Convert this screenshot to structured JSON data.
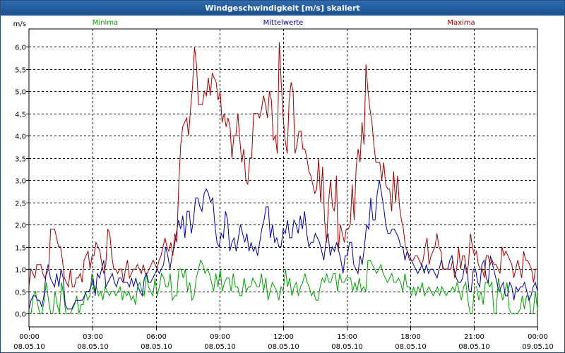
{
  "window": {
    "title": "Windgeschwindigkeit [m/s] skaliert"
  },
  "chart_data": {
    "type": "line",
    "title": "Windgeschwindigkeit [m/s] skaliert",
    "ylabel": "m/s",
    "ylim": [
      -0.3,
      6.4
    ],
    "yticks": [
      "0,0",
      "0,5",
      "1,0",
      "1,5",
      "2,0",
      "2,5",
      "3,0",
      "3,5",
      "4,0",
      "4,5",
      "5,0",
      "5,5",
      "6,0"
    ],
    "ytick_values": [
      0,
      0.5,
      1,
      1.5,
      2,
      2.5,
      3,
      3.5,
      4,
      4.5,
      5,
      5.5,
      6
    ],
    "xlim": [
      0,
      24
    ],
    "xticks": [
      {
        "time": "00:00",
        "date": "08.05.10"
      },
      {
        "time": "03:00",
        "date": "08.05.10"
      },
      {
        "time": "06:00",
        "date": "08.05.10"
      },
      {
        "time": "09:00",
        "date": "08.05.10"
      },
      {
        "time": "12:00",
        "date": "08.05.10"
      },
      {
        "time": "15:00",
        "date": "08.05.10"
      },
      {
        "time": "18:00",
        "date": "08.05.10"
      },
      {
        "time": "21:00",
        "date": "08.05.10"
      },
      {
        "time": "00:00",
        "date": "09.05.10"
      }
    ],
    "grid": true,
    "legend_position": "top",
    "series": [
      {
        "name": "Minima",
        "color": "#00a000",
        "values": [
          0,
          0,
          0.4,
          0.5,
          0.2,
          0,
          0,
          0.3,
          0.7,
          0.3,
          0,
          0,
          0.5,
          0.2,
          0,
          0.7,
          0.4,
          0,
          0,
          0,
          0.1,
          0.2,
          0.4,
          0,
          0.2,
          0.2,
          0.5,
          0.3,
          0.4,
          0.9,
          0.5,
          0.6,
          0.4,
          0.5,
          0.3,
          0.6,
          0.5,
          0.4,
          0.5,
          0.5,
          0.4,
          0.5,
          0.6,
          0.3,
          0.5,
          0.4,
          0.5,
          0.3,
          0.4,
          0.2,
          0.6,
          0.7,
          0.5,
          0.4,
          0.9,
          0.6,
          0.5,
          0.4,
          0.8,
          0.4,
          0.6,
          0.9,
          0.8,
          0.6,
          0.6,
          0.9,
          0.3,
          0.4,
          0.4,
          1,
          1,
          0.8,
          1,
          0.5,
          0.7,
          0.3,
          0.4,
          0.8,
          1,
          1.2,
          1.1,
          0.9,
          1,
          0.9,
          0.7,
          0.5,
          0.9,
          0.6,
          1,
          0.5,
          0.7,
          0.8,
          0.8,
          0.5,
          0.9,
          0.6,
          0.6,
          0.4,
          0.4,
          0.8,
          0.5,
          0.6,
          0.6,
          0.8,
          0.7,
          0.6,
          0.6,
          0.9,
          0.5,
          0.8,
          0.3,
          0.5,
          0.7,
          0.6,
          0.5,
          0.3,
          0.6,
          0.5,
          1,
          0.6,
          0.8,
          0.4,
          0.6,
          0.7,
          0.4,
          0.6,
          0.7,
          0.9,
          0.7,
          0.6,
          0.4,
          0.5,
          0.3,
          0.3,
          0.6,
          0.8,
          0.7,
          0.9,
          0.7,
          0.7,
          0.9,
          0.9,
          0.5,
          0.9,
          0.7,
          0.7,
          0.8,
          0.8,
          0.8,
          0.5,
          0.7,
          0.5,
          0.8,
          0.5,
          0.6,
          0.5,
          1.2,
          1.2,
          1.1,
          1,
          0.9,
          1,
          1.1,
          0.9,
          0.8,
          0.7,
          0.8,
          0.9,
          0.7,
          0.7,
          0.8,
          0.7,
          0.5,
          0.9,
          0.6,
          0.6,
          0.4,
          0.6,
          0.4,
          0.6,
          0.5,
          0.7,
          0.4,
          0.5,
          0.6,
          0.5,
          0.4,
          0.5,
          0.6,
          0.4,
          0.6,
          0.5,
          0.4,
          0.5,
          0.5,
          0.6,
          0.5,
          0.7,
          0.5,
          0.3,
          0.6,
          0.7,
          0.3,
          0,
          0,
          0.6,
          0.6,
          0.3,
          0.5,
          0.2,
          0.7,
          0.7,
          0.6,
          0.7,
          0,
          0,
          0.8,
          0.5,
          0.3,
          0.5,
          0.7,
          0.1,
          0,
          0,
          0,
          0,
          0.1,
          0.4,
          0.1,
          0.4,
          0.4,
          0,
          0,
          0.5,
          0.1
        ]
      },
      {
        "name": "Mittelwerte",
        "color": "#0000a0",
        "values": [
          0.1,
          0.3,
          0.4,
          0.4,
          0.3,
          0.3,
          0.15,
          0.4,
          0.9,
          1.1,
          0.8,
          0.7,
          0.6,
          0.9,
          0.6,
          1,
          0.8,
          0.2,
          0.1,
          0.1,
          0.1,
          0.2,
          0.3,
          0.3,
          0.3,
          0.3,
          0.4,
          0.5,
          0.5,
          0.6,
          0.8,
          0.4,
          0.9,
          0.8,
          1,
          1.2,
          0.6,
          0.7,
          0.8,
          0.9,
          0.7,
          0.6,
          0.8,
          0.8,
          0.7,
          0.7,
          0.7,
          0.6,
          0.8,
          0.6,
          0.8,
          0.6,
          0.5,
          0.4,
          0.8,
          0.9,
          0.7,
          0.7,
          0.8,
          0.9,
          1,
          0.9,
          1,
          1.1,
          1.5,
          1.3,
          1,
          1.3,
          1.5,
          1.8,
          2.1,
          1.9,
          2.2,
          1.7,
          2.3,
          2.3,
          1.8,
          2.1,
          2.6,
          2.6,
          2.4,
          2.3,
          2.7,
          2.8,
          2.7,
          2.5,
          2.6,
          2,
          1.6,
          1.5,
          1.8,
          1.7,
          2.3,
          2.1,
          1.4,
          1.6,
          1.7,
          1.4,
          1.7,
          2,
          1.8,
          1.6,
          1.8,
          1.4,
          1.6,
          1.4,
          1.5,
          1.3,
          1.6,
          1.9,
          2.1,
          2.4,
          2.4,
          1.7,
          2,
          1.6,
          1.7,
          1.5,
          1.5,
          1.9,
          1.8,
          2.1,
          1.7,
          1.7,
          2.1,
          2,
          1.8,
          2.2,
          1.9,
          2.3,
          1.8,
          1.5,
          1.6,
          1.6,
          1.8,
          1.7,
          1.6,
          1.4,
          1.2,
          1.6,
          1.8,
          1.3,
          1.5,
          1.4,
          1.6,
          1.4,
          1.2,
          0.9,
          1.3,
          1.3,
          1.6,
          1.6,
          1.1,
          1,
          0.9,
          1.3,
          1.1,
          1.5,
          2,
          1.9,
          2.6,
          2.1,
          2.1,
          2.7,
          3,
          2.7,
          2.4,
          2,
          1.8,
          1.8,
          1.9,
          1.9,
          1.8,
          1.7,
          1.5,
          1.5,
          1.2,
          1.4,
          1.3,
          1.2,
          1.1,
          1,
          0.9,
          1,
          1.1,
          0.9,
          1.1,
          0.9,
          1,
          1,
          0.9,
          0.8,
          1,
          1.2,
          1,
          1,
          1,
          1.2,
          1.3,
          1,
          0.8,
          0.7,
          0.7,
          0.8,
          1.1,
          1,
          0.5,
          0.5,
          1,
          1,
          0.7,
          0.6,
          1.1,
          1.2,
          0.8,
          0.7,
          1.3,
          1.1,
          0.9,
          0.7,
          0.5,
          0.6,
          0.7,
          0.4,
          0.4,
          0.7,
          0.6,
          0.3,
          0.6,
          0.5,
          0.6,
          0.6,
          0.7,
          0.5,
          0.3,
          0.4,
          0.6,
          0.7,
          0.5
        ]
      },
      {
        "name": "Maxima",
        "color": "#a00000",
        "values": [
          0.6,
          1,
          0.9,
          0.8,
          1.1,
          1.1,
          1.1,
          0.9,
          0.8,
          0.9,
          1,
          1.9,
          1.9,
          1.9,
          1.7,
          1.5,
          1.5,
          1.2,
          0.8,
          0.7,
          0.6,
          1,
          0.6,
          0.6,
          0.8,
          0.8,
          0.9,
          0.7,
          1.2,
          1.3,
          1.4,
          1,
          1.3,
          1.3,
          1.6,
          1.5,
          1.4,
          1.1,
          0.9,
          1.1,
          1.9,
          1.8,
          1.3,
          1,
          1,
          0.9,
          1,
          1,
          0.7,
          1,
          1.2,
          0.8,
          0.9,
          1,
          1,
          1.1,
          1,
          0.9,
          1.1,
          0.9,
          0.9,
          1,
          1.1,
          1.2,
          1.1,
          1,
          1.2,
          1.3,
          1.5,
          1.7,
          1.5,
          1.4,
          1.6,
          1.3,
          1.8,
          1.6,
          2.9,
          3.8,
          4.2,
          4.3,
          4.4,
          4,
          4.6,
          5.1,
          6,
          5.6,
          4.7,
          4.7,
          4.7,
          5,
          4.9,
          5.3,
          4.9,
          5.4,
          5.3,
          5.2,
          4.8,
          5,
          4.3,
          4.5,
          4.2,
          4.4,
          4.2,
          3.5,
          4,
          4,
          4.5,
          3.9,
          3.4,
          3.7,
          3,
          2.9,
          3.5,
          3.5,
          4.5,
          4.5,
          4.5,
          4.4,
          4.6,
          4.9,
          4.7,
          4.4,
          5,
          4.8,
          3.9,
          4,
          3.6,
          6.1,
          5.2,
          4.4,
          3.9,
          3.6,
          4.8,
          5.2,
          5,
          3.6,
          3.8,
          4.1,
          4.1,
          3.7,
          3.7,
          3.5,
          3.2,
          3.1,
          2.9,
          2.7,
          2.8,
          3.5,
          2.5,
          3.3,
          2.1,
          1.6,
          2.5,
          3,
          2.4,
          2.3,
          3.1,
          1.4,
          2,
          1.8,
          1.6,
          1.9,
          1.9,
          2,
          2.9,
          2.1,
          3.3,
          3.7,
          3.4,
          4.3,
          3.8,
          5.6,
          5,
          4.6,
          4.3,
          3.8,
          3.4,
          3.4,
          3.4,
          3,
          3.4,
          2.9,
          2.8,
          2.8,
          2.3,
          3.2,
          2.5,
          3.1,
          2.4,
          2.1,
          1.9,
          1.5,
          1.4,
          1.2,
          1.2,
          1.2,
          1.3,
          1.3,
          1.2,
          1.1,
          1.2,
          1.5,
          1.7,
          1.1,
          1.3,
          1.4,
          1.5,
          1.8,
          1.5,
          1.4,
          1,
          1,
          1,
          1,
          1,
          1.2,
          0.8,
          1,
          1.5,
          1,
          1.3,
          1.3,
          0.9,
          1.1,
          1.8,
          1.5,
          1.3,
          1.4,
          1.1,
          1,
          1,
          0.8,
          1.3,
          1.3,
          1.1,
          1.2,
          1.1,
          1.1,
          1,
          0.9,
          1.5,
          1.3,
          1.4,
          1.3,
          1.2,
          1.1,
          0.8,
          1,
          1.2,
          1,
          0.8,
          1.4,
          1.2,
          1.2,
          1.1,
          1,
          0.7,
          1,
          1
        ]
      }
    ]
  }
}
